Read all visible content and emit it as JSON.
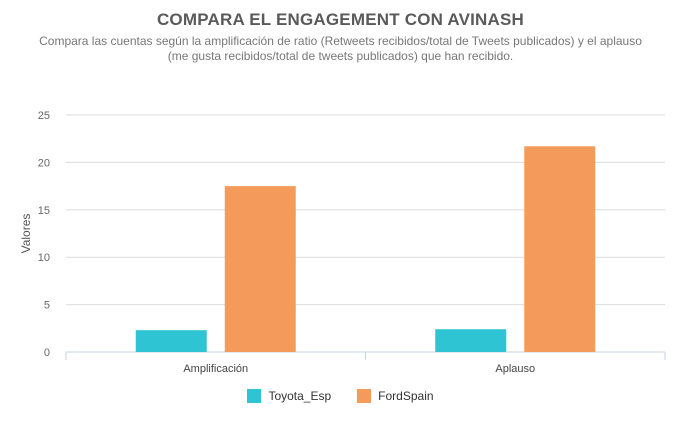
{
  "chart_data": {
    "type": "bar",
    "title": "COMPARA EL ENGAGEMENT CON AVINASH",
    "subtitle": "Compara las cuentas según la amplificación de ratio (Retweets recibidos/total de Tweets publicados) y el aplauso (me gusta recibidos/total de tweets publicados) que han recibido.",
    "xlabel": "",
    "ylabel": "Valores",
    "categories": [
      "Amplificación",
      "Aplauso"
    ],
    "series": [
      {
        "name": "Toyota_Esp",
        "color": "#2ec4d3",
        "values": [
          2.3,
          2.4
        ]
      },
      {
        "name": "FordSpain",
        "color": "#f49a5a",
        "values": [
          17.5,
          21.7
        ]
      }
    ],
    "ylim": [
      0,
      25
    ],
    "yticks": [
      0,
      5,
      10,
      15,
      20,
      25
    ],
    "grid": true,
    "legend": "bottom-center"
  }
}
